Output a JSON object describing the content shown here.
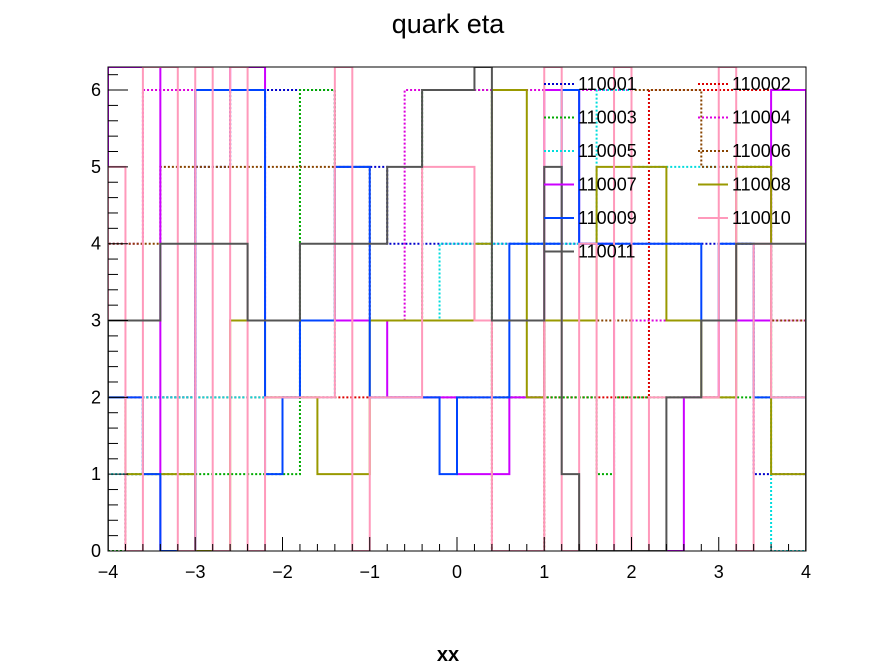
{
  "chart_data": {
    "type": "step-histogram",
    "title": "quark eta",
    "xlabel": "xx",
    "ylabel": "",
    "xlim": [
      -4,
      4
    ],
    "ylim": [
      0,
      6.3
    ],
    "bin_width": 0.2,
    "x_start": -4,
    "x_ticks": [
      -4,
      -3,
      -2,
      -1,
      0,
      1,
      2,
      3,
      4
    ],
    "x_tick_labels": [
      "−4",
      "−3",
      "−2",
      "−1",
      "0",
      "1",
      "2",
      "3",
      "4"
    ],
    "y_ticks": [
      0,
      1,
      2,
      3,
      4,
      5,
      6
    ],
    "y_tick_labels": [
      "0",
      "1",
      "2",
      "3",
      "4",
      "5",
      "6"
    ],
    "grid": false,
    "legend_position": "top-right",
    "series": [
      {
        "name": "110001",
        "color": "#0000cc",
        "dash": "dotted",
        "values": [
          0,
          1,
          2,
          2,
          2,
          5,
          5,
          6,
          6,
          6,
          6,
          6,
          6,
          5,
          5,
          5,
          4,
          4,
          4,
          4,
          4,
          4,
          4,
          4,
          4,
          4,
          4,
          4,
          4,
          4,
          4,
          4,
          4,
          4,
          4,
          4,
          4,
          1,
          1,
          1
        ]
      },
      {
        "name": "110002",
        "color": "#dd0000",
        "dash": "dotted",
        "values": [
          0,
          2,
          2,
          2,
          2,
          2,
          2,
          2,
          2,
          2,
          2,
          2,
          2,
          2,
          2,
          2,
          2,
          2,
          2,
          2,
          2,
          2,
          2,
          2,
          2,
          2,
          2,
          2,
          2,
          2,
          2,
          6,
          6,
          6,
          6,
          6,
          6,
          6,
          6,
          6
        ]
      },
      {
        "name": "110003",
        "color": "#00aa00",
        "dash": "dotted",
        "values": [
          0,
          1,
          1,
          1,
          1,
          1,
          1,
          1,
          1,
          1,
          1,
          6,
          6,
          3,
          3,
          3,
          3,
          3,
          6,
          6,
          6,
          6,
          2,
          2,
          2,
          2,
          2,
          2,
          1,
          2,
          2,
          2,
          2,
          2,
          2,
          2,
          2,
          2,
          2,
          2
        ]
      },
      {
        "name": "110004",
        "color": "#dd00dd",
        "dash": "dotted",
        "values": [
          4,
          4,
          6,
          6,
          6,
          6,
          6,
          6,
          6,
          3,
          3,
          3,
          3,
          3,
          3,
          3,
          3,
          6,
          6,
          6,
          6,
          6,
          6,
          6,
          6,
          6,
          6,
          6,
          6,
          6,
          3,
          3,
          3,
          3,
          3,
          3,
          3,
          3,
          3,
          3
        ]
      },
      {
        "name": "110005",
        "color": "#00dddd",
        "dash": "dotted",
        "values": [
          1,
          1,
          2,
          2,
          2,
          2,
          2,
          2,
          2,
          2,
          2,
          2,
          2,
          3,
          3,
          3,
          3,
          3,
          3,
          4,
          4,
          4,
          4,
          4,
          4,
          4,
          4,
          4,
          6,
          6,
          5,
          5,
          5,
          5,
          5,
          5,
          5,
          5,
          0,
          0
        ]
      },
      {
        "name": "110006",
        "color": "#884400",
        "dash": "dotted",
        "values": [
          4,
          4,
          4,
          5,
          5,
          5,
          5,
          5,
          5,
          5,
          5,
          5,
          5,
          5,
          5,
          3,
          3,
          3,
          3,
          3,
          3,
          3,
          0,
          0,
          0,
          3,
          3,
          3,
          3,
          3,
          6,
          6,
          6,
          6,
          5,
          5,
          5,
          5,
          3,
          3
        ]
      },
      {
        "name": "110007",
        "color": "#cc00ff",
        "dash": "solid",
        "values": [
          6.3,
          6.3,
          6.3,
          0,
          0,
          6,
          6,
          6.3,
          6.3,
          3,
          3,
          3,
          3,
          3,
          3,
          3,
          2,
          2,
          2,
          2,
          1,
          1,
          1,
          2,
          2,
          6,
          6,
          4,
          4,
          0,
          0,
          0,
          0,
          2,
          2,
          3,
          3,
          3,
          6,
          6
        ]
      },
      {
        "name": "110008",
        "color": "#999900",
        "dash": "solid",
        "values": [
          2,
          1,
          1,
          1,
          1,
          0,
          0,
          3,
          3,
          2,
          2,
          2,
          1,
          1,
          1,
          3,
          3,
          3,
          3,
          3,
          3,
          4,
          6,
          6,
          2,
          3,
          3,
          3,
          5,
          5,
          5,
          5,
          3,
          3,
          2,
          2,
          5,
          5,
          1,
          1
        ]
      },
      {
        "name": "110009",
        "color": "#0044ff",
        "dash": "solid",
        "values": [
          2,
          2,
          1,
          0,
          0,
          6,
          6,
          6,
          6,
          1,
          2,
          3,
          3,
          5,
          5,
          2,
          2,
          2,
          2,
          1,
          2,
          2,
          2,
          4,
          4,
          4,
          6,
          4,
          4,
          4,
          4,
          4,
          4,
          4,
          3,
          4,
          4,
          2,
          2,
          2
        ]
      },
      {
        "name": "110010",
        "color": "#ff99bb",
        "dash": "solid",
        "values": [
          5,
          0,
          6.3,
          6.3,
          0,
          6.3,
          0,
          6.3,
          0,
          2,
          2,
          2,
          2,
          6.3,
          0,
          2,
          2,
          2,
          5,
          5,
          5,
          3,
          0,
          0,
          0,
          6.3,
          0,
          4,
          0,
          6.3,
          0,
          2,
          2,
          2,
          2,
          6.3,
          0,
          4,
          2,
          2
        ]
      },
      {
        "name": "110011",
        "color": "#555555",
        "dash": "solid",
        "values": [
          3,
          3,
          3,
          4,
          4,
          4,
          4,
          4,
          3,
          3,
          3,
          4,
          4,
          4,
          4,
          4,
          5,
          5,
          6,
          6,
          6,
          6.3,
          3,
          3,
          3,
          5,
          1,
          0,
          0,
          0,
          0,
          0,
          2,
          2,
          3,
          3,
          4,
          4,
          4,
          4
        ]
      }
    ]
  }
}
